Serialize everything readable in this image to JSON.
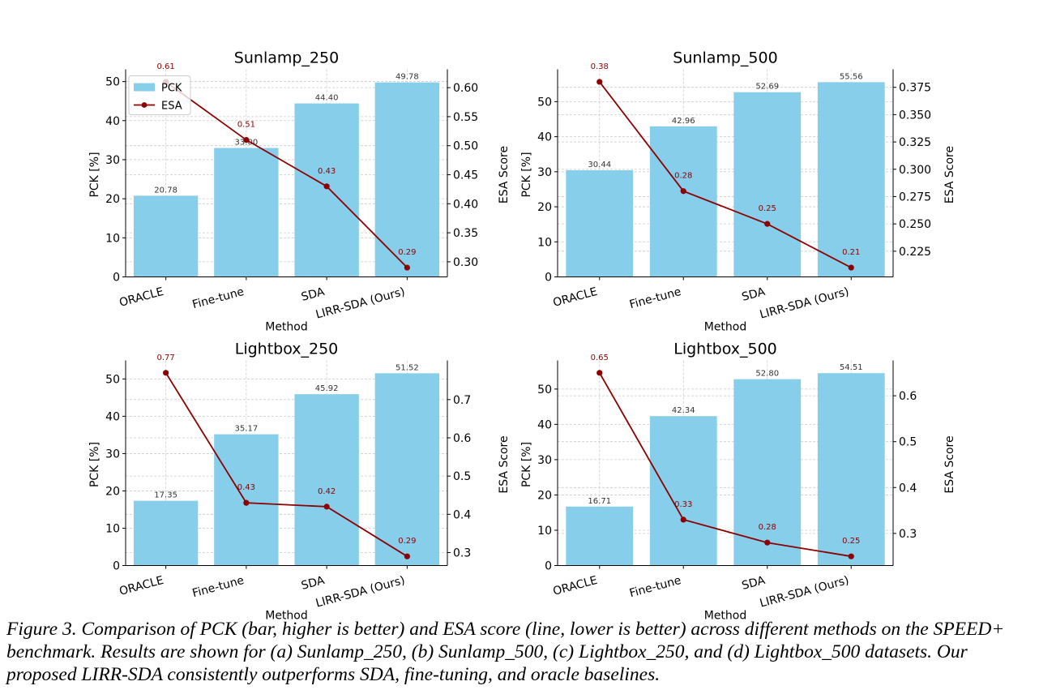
{
  "chart_data": [
    {
      "type": "bar",
      "title": "Sunlamp_250",
      "xlabel": "Method",
      "ylabel": "PCK [%]",
      "y2label": "ESA Score",
      "categories": [
        "ORACLE",
        "Fine-tune",
        "SDA",
        "LIRR-SDA (Ours)"
      ],
      "series": [
        {
          "name": "PCK",
          "type": "bar",
          "values": [
            20.78,
            33.0,
            44.4,
            49.78
          ],
          "labels": [
            "20.78",
            "33.00",
            "44.40",
            "49.78"
          ],
          "color": "#87CEEB"
        },
        {
          "name": "ESA",
          "type": "line",
          "axis": "right",
          "values": [
            0.61,
            0.51,
            0.43,
            0.29
          ],
          "labels": [
            "0.61",
            "0.51",
            "0.43",
            "0.29"
          ],
          "color": "#8B0000"
        }
      ],
      "ylim": [
        0,
        52.3
      ],
      "y2lim": [
        0.274,
        0.626
      ],
      "yticks": [
        "0",
        "10",
        "20",
        "30",
        "40",
        "50"
      ],
      "y2ticks": [
        "0.30",
        "0.35",
        "0.40",
        "0.45",
        "0.50",
        "0.55",
        "0.60"
      ],
      "legend": "top-left",
      "grid": true
    },
    {
      "type": "bar",
      "title": "Sunlamp_500",
      "xlabel": "Method",
      "ylabel": "PCK [%]",
      "y2label": "ESA Score",
      "categories": [
        "ORACLE",
        "Fine-tune",
        "SDA",
        "LIRR-SDA (Ours)"
      ],
      "series": [
        {
          "name": "PCK",
          "type": "bar",
          "values": [
            30.44,
            42.96,
            52.69,
            55.56
          ],
          "labels": [
            "30.44",
            "42.96",
            "52.69",
            "55.56"
          ],
          "color": "#87CEEB"
        },
        {
          "name": "ESA",
          "type": "line",
          "axis": "right",
          "values": [
            0.38,
            0.28,
            0.25,
            0.21
          ],
          "labels": [
            "0.38",
            "0.28",
            "0.25",
            "0.21"
          ],
          "color": "#8B0000"
        }
      ],
      "ylim": [
        0,
        58.3
      ],
      "y2lim": [
        0.2015,
        0.3885
      ],
      "yticks": [
        "0",
        "10",
        "20",
        "30",
        "40",
        "50"
      ],
      "y2ticks": [
        "0.225",
        "0.250",
        "0.275",
        "0.300",
        "0.325",
        "0.350",
        "0.375"
      ],
      "grid": true
    },
    {
      "type": "bar",
      "title": "Lightbox_250",
      "xlabel": "Method",
      "ylabel": "PCK [%]",
      "y2label": "ESA Score",
      "categories": [
        "ORACLE",
        "Fine-tune",
        "SDA",
        "LIRR-SDA (Ours)"
      ],
      "series": [
        {
          "name": "PCK",
          "type": "bar",
          "values": [
            17.35,
            35.17,
            45.92,
            51.52
          ],
          "labels": [
            "17.35",
            "35.17",
            "45.92",
            "51.52"
          ],
          "color": "#87CEEB"
        },
        {
          "name": "ESA",
          "type": "line",
          "axis": "right",
          "values": [
            0.77,
            0.43,
            0.42,
            0.29
          ],
          "labels": [
            "0.77",
            "0.43",
            "0.42",
            "0.29"
          ],
          "color": "#8B0000"
        }
      ],
      "ylim": [
        0,
        54.1
      ],
      "y2lim": [
        0.266,
        0.794
      ],
      "yticks": [
        "0",
        "10",
        "20",
        "30",
        "40",
        "50"
      ],
      "y2ticks": [
        "0.3",
        "0.4",
        "0.5",
        "0.6",
        "0.7"
      ],
      "grid": true
    },
    {
      "type": "bar",
      "title": "Lightbox_500",
      "xlabel": "Method",
      "ylabel": "PCK [%]",
      "y2label": "ESA Score",
      "categories": [
        "ORACLE",
        "Fine-tune",
        "SDA",
        "LIRR-SDA (Ours)"
      ],
      "series": [
        {
          "name": "PCK",
          "type": "bar",
          "values": [
            16.71,
            42.34,
            52.8,
            54.51
          ],
          "labels": [
            "16.71",
            "42.34",
            "52.80",
            "54.51"
          ],
          "color": "#87CEEB"
        },
        {
          "name": "ESA",
          "type": "line",
          "axis": "right",
          "values": [
            0.65,
            0.33,
            0.28,
            0.25
          ],
          "labels": [
            "0.65",
            "0.33",
            "0.28",
            "0.25"
          ],
          "color": "#8B0000"
        }
      ],
      "ylim": [
        0,
        57.2
      ],
      "y2lim": [
        0.23,
        0.67
      ],
      "yticks": [
        "0",
        "10",
        "20",
        "30",
        "40",
        "50"
      ],
      "y2ticks": [
        "0.3",
        "0.4",
        "0.5",
        "0.6"
      ],
      "grid": true
    }
  ],
  "caption": "Figure 3. Comparison of PCK (bar, higher is better) and ESA score (line, lower is better) across different methods on the SPEED+ benchmark. Results are shown for (a) Sunlamp_250, (b) Sunlamp_500, (c) Lightbox_250, and (d) Lightbox_500 datasets. Our proposed LIRR-SDA consistently outperforms SDA, fine-tuning, and oracle baselines."
}
